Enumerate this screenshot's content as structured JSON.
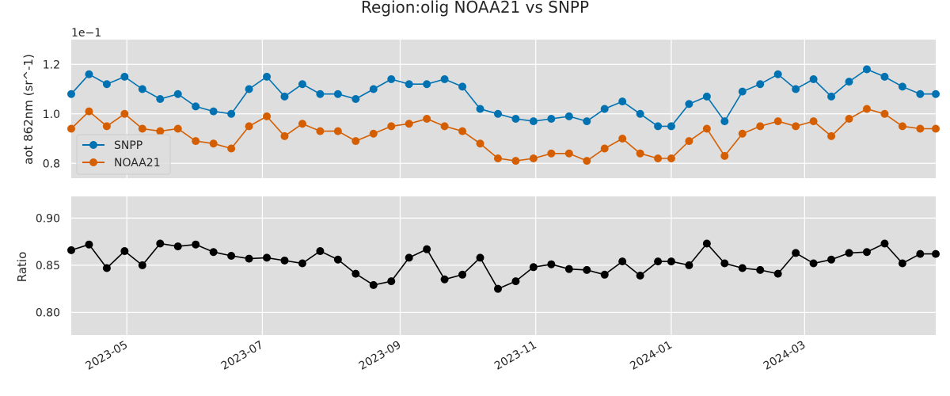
{
  "chart_data": {
    "type": "line",
    "title": "Region:olig NOAA21 vs SNPP",
    "x_tick_labels": [
      "2023-05",
      "2023-07",
      "2023-09",
      "2023-11",
      "2024-01",
      "2024-03"
    ],
    "x_tick_dates": [
      "2023-05-01",
      "2023-07-01",
      "2023-09-01",
      "2023-11-01",
      "2024-01-01",
      "2024-03-01"
    ],
    "x_range": [
      "2023-04-06",
      "2024-04-29"
    ],
    "x": [
      "2023-04-06",
      "2023-04-14",
      "2023-04-22",
      "2023-04-30",
      "2023-05-08",
      "2023-05-16",
      "2023-05-24",
      "2023-06-01",
      "2023-06-09",
      "2023-06-17",
      "2023-06-25",
      "2023-07-03",
      "2023-07-11",
      "2023-07-19",
      "2023-07-27",
      "2023-08-04",
      "2023-08-12",
      "2023-08-20",
      "2023-08-28",
      "2023-09-05",
      "2023-09-13",
      "2023-09-21",
      "2023-09-29",
      "2023-10-07",
      "2023-10-15",
      "2023-10-23",
      "2023-10-31",
      "2023-11-08",
      "2023-11-16",
      "2023-11-24",
      "2023-12-02",
      "2023-12-10",
      "2023-12-18",
      "2023-12-26",
      "2024-01-01",
      "2024-01-09",
      "2024-01-17",
      "2024-01-25",
      "2024-02-02",
      "2024-02-10",
      "2024-02-18",
      "2024-02-26",
      "2024-03-05",
      "2024-03-13",
      "2024-03-21",
      "2024-03-29",
      "2024-04-06",
      "2024-04-14",
      "2024-04-22",
      "2024-04-29"
    ],
    "panels": [
      {
        "ylabel": "aot 862nm (sr^-1)",
        "y_offset_label": "1e−1",
        "ylim": [
          0.74,
          1.3
        ],
        "y_ticks": [
          0.8,
          1.0,
          1.2
        ],
        "y_tick_labels": [
          "0.8",
          "1.0",
          "1.2"
        ],
        "grid": true,
        "legend_position": "left",
        "series": [
          {
            "name": "SNPP",
            "color": "#0072b2",
            "values": [
              1.08,
              1.16,
              1.12,
              1.15,
              1.1,
              1.06,
              1.08,
              1.03,
              1.01,
              1.0,
              1.1,
              1.15,
              1.07,
              1.12,
              1.08,
              1.08,
              1.06,
              1.1,
              1.14,
              1.12,
              1.12,
              1.14,
              1.11,
              1.02,
              1.0,
              0.98,
              0.97,
              0.98,
              0.99,
              0.97,
              1.02,
              1.05,
              1.0,
              0.95,
              0.95,
              1.04,
              1.07,
              0.97,
              1.09,
              1.12,
              1.16,
              1.1,
              1.14,
              1.07,
              1.13,
              1.18,
              1.15,
              1.11,
              1.08,
              1.08
            ]
          },
          {
            "name": "NOAA21",
            "color": "#d55e00",
            "values": [
              0.94,
              1.01,
              0.95,
              1.0,
              0.94,
              0.93,
              0.94,
              0.89,
              0.88,
              0.86,
              0.95,
              0.99,
              0.91,
              0.96,
              0.93,
              0.93,
              0.89,
              0.92,
              0.95,
              0.96,
              0.98,
              0.95,
              0.93,
              0.88,
              0.82,
              0.81,
              0.82,
              0.84,
              0.84,
              0.81,
              0.86,
              0.9,
              0.84,
              0.82,
              0.82,
              0.89,
              0.94,
              0.83,
              0.92,
              0.95,
              0.97,
              0.95,
              0.97,
              0.91,
              0.98,
              1.02,
              1.0,
              0.95,
              0.94,
              0.94
            ]
          }
        ]
      },
      {
        "ylabel": "Ratio",
        "ylim": [
          0.776,
          0.923
        ],
        "y_ticks": [
          0.8,
          0.85,
          0.9
        ],
        "y_tick_labels": [
          "0.80",
          "0.85",
          "0.90"
        ],
        "grid": true,
        "series": [
          {
            "name": "",
            "color": "#000000",
            "values": [
              0.866,
              0.872,
              0.847,
              0.865,
              0.85,
              0.873,
              0.87,
              0.872,
              0.864,
              0.86,
              0.857,
              0.858,
              0.855,
              0.852,
              0.865,
              0.856,
              0.841,
              0.829,
              0.833,
              0.858,
              0.867,
              0.835,
              0.84,
              0.858,
              0.825,
              0.833,
              0.848,
              0.851,
              0.846,
              0.845,
              0.84,
              0.854,
              0.839,
              0.854,
              0.854,
              0.85,
              0.873,
              0.852,
              0.847,
              0.845,
              0.841,
              0.863,
              0.852,
              0.856,
              0.863,
              0.864,
              0.873,
              0.852,
              0.862,
              0.862
            ]
          }
        ]
      }
    ]
  }
}
